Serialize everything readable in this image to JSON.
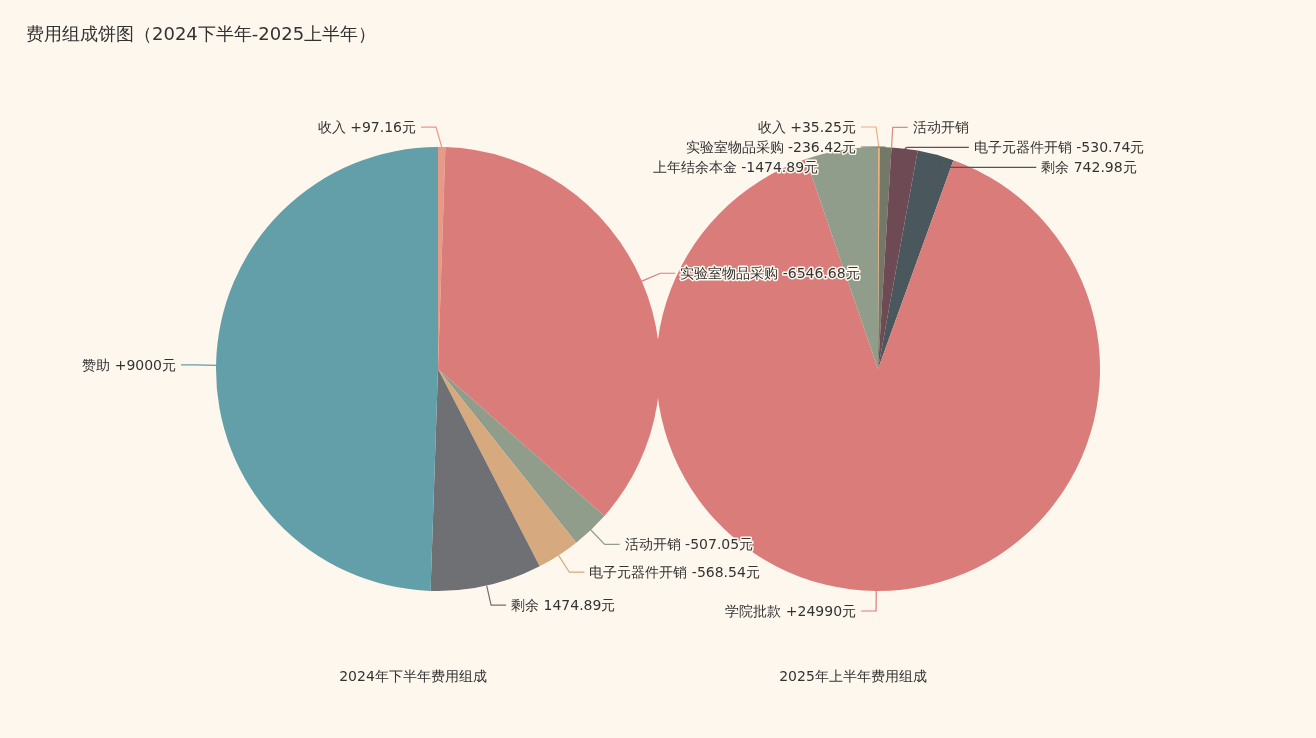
{
  "chart_data": [
    {
      "type": "other",
      "title": "费用组成饼图（2024下半年-2025上半年）"
    },
    {
      "type": "pie",
      "title": "2024年下半年费用组成",
      "categories": [
        "收入 +97.16元",
        "实验室物品采购 -6546.68元",
        "活动开销 -507.05元",
        "电子元器件开销 -568.54元",
        "剩余 1474.89元",
        "赞助 +9000元"
      ],
      "values": [
        97.16,
        6546.68,
        507.05,
        568.54,
        1474.89,
        9000
      ],
      "colors": [
        "#e89a88",
        "#d97c7a",
        "#909d8a",
        "#d6a97f",
        "#6f7074",
        "#629fa8"
      ]
    },
    {
      "type": "pie",
      "title": "2025年上半年费用组成",
      "categories": [
        "收入 +35.25元",
        "实验室物品采购 -236.42元",
        "活动开销",
        "电子元器件开销 -530.74元",
        "剩余 742.98元",
        "学院批款 +24990元",
        "上年结余本金 -1474.89元"
      ],
      "values": [
        35.25,
        236.42,
        0,
        530.74,
        742.98,
        24990,
        1474.89
      ],
      "colors": [
        "#e8b07a",
        "#737868",
        "#e08a7a",
        "#6e4a55",
        "#4a575c",
        "#d97c7a",
        "#909d8a"
      ]
    }
  ]
}
